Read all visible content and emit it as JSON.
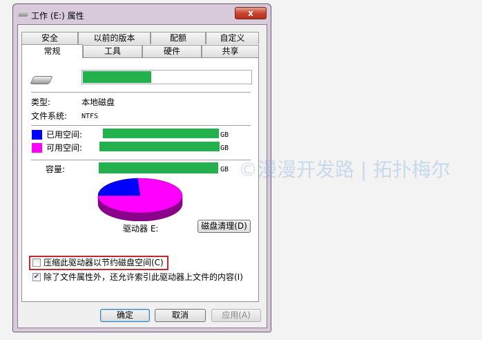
{
  "window": {
    "title": "工作 (E:) 属性",
    "close_label": "x"
  },
  "tabs_row1": [
    {
      "label": "安全"
    },
    {
      "label": "以前的版本"
    },
    {
      "label": "配额"
    },
    {
      "label": "自定义"
    }
  ],
  "tabs_row2": [
    {
      "label": "常规",
      "selected": true
    },
    {
      "label": "工具"
    },
    {
      "label": "硬件"
    },
    {
      "label": "共享"
    }
  ],
  "general": {
    "type_label": "类型:",
    "type_value": "本地磁盘",
    "fs_label": "文件系统:",
    "fs_value": "NTFS",
    "used_label": "已用空间:",
    "free_label": "可用空间:",
    "capacity_label": "容量:",
    "unit": "GB",
    "drive_label": "驱动器 E:",
    "cleanup_button": "磁盘清理(D)",
    "compress_label": "压缩此驱动器以节约磁盘空间(C)",
    "compress_checked": false,
    "index_label": "除了文件属性外，还允许索引此驱动器上文件的内容(I)",
    "index_checked": true
  },
  "chart_data": {
    "type": "pie",
    "series": [
      {
        "name": "已用空间",
        "value": 0.24,
        "color": "#0000ff"
      },
      {
        "name": "可用空间",
        "value": 0.76,
        "color": "#ff00ff"
      }
    ]
  },
  "colors": {
    "used": "#0000ff",
    "free": "#ff00ff",
    "redaction": "#22b14c",
    "highlight": "#c0282e"
  },
  "buttons": {
    "ok": "确定",
    "cancel": "取消",
    "apply": "应用(A)"
  },
  "watermark": "©漫漫开发路 | 拓扑梅尔"
}
